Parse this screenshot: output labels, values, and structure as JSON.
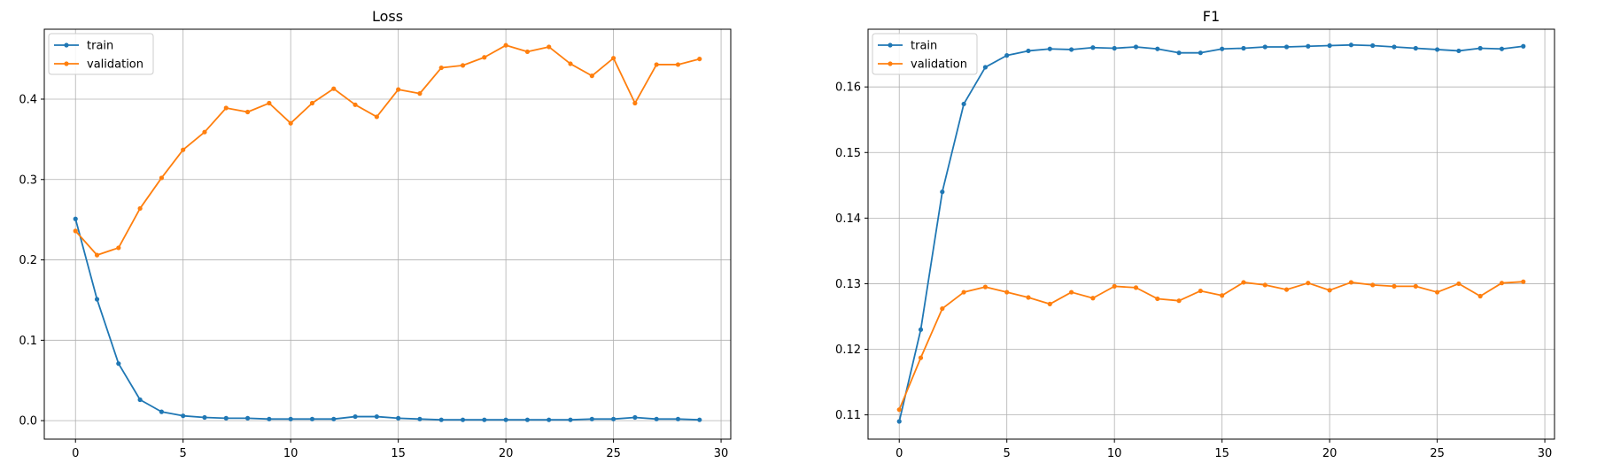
{
  "chart_data": [
    {
      "type": "line",
      "title": "Loss",
      "xlabel": "",
      "ylabel": "",
      "x": [
        0,
        1,
        2,
        3,
        4,
        5,
        6,
        7,
        8,
        9,
        10,
        11,
        12,
        13,
        14,
        15,
        16,
        17,
        18,
        19,
        20,
        21,
        22,
        23,
        24,
        25,
        26,
        27,
        28,
        29
      ],
      "xlim": [
        -1.45,
        30.45
      ],
      "ylim": [
        -0.023,
        0.487
      ],
      "xticks": [
        0,
        5,
        10,
        15,
        20,
        25,
        30
      ],
      "yticks": [
        0.0,
        0.1,
        0.2,
        0.3,
        0.4
      ],
      "xtick_labels": [
        "0",
        "5",
        "10",
        "15",
        "20",
        "25",
        "30"
      ],
      "ytick_labels": [
        "0.0",
        "0.1",
        "0.2",
        "0.3",
        "0.4"
      ],
      "grid": true,
      "legend": "top-left",
      "series": [
        {
          "name": "train",
          "color": "#1f77b4",
          "values": [
            0.251,
            0.151,
            0.071,
            0.026,
            0.011,
            0.006,
            0.004,
            0.003,
            0.003,
            0.002,
            0.002,
            0.002,
            0.002,
            0.005,
            0.005,
            0.003,
            0.002,
            0.001,
            0.001,
            0.001,
            0.001,
            0.001,
            0.001,
            0.001,
            0.002,
            0.002,
            0.004,
            0.002,
            0.002,
            0.001
          ]
        },
        {
          "name": "validation",
          "color": "#ff7f0e",
          "values": [
            0.236,
            0.206,
            0.215,
            0.264,
            0.302,
            0.337,
            0.359,
            0.389,
            0.384,
            0.395,
            0.37,
            0.395,
            0.413,
            0.393,
            0.378,
            0.412,
            0.407,
            0.439,
            0.442,
            0.452,
            0.467,
            0.459,
            0.465,
            0.444,
            0.429,
            0.451,
            0.395,
            0.443,
            0.443,
            0.45
          ]
        }
      ]
    },
    {
      "type": "line",
      "title": "F1",
      "xlabel": "",
      "ylabel": "",
      "x": [
        0,
        1,
        2,
        3,
        4,
        5,
        6,
        7,
        8,
        9,
        10,
        11,
        12,
        13,
        14,
        15,
        16,
        17,
        18,
        19,
        20,
        21,
        22,
        23,
        24,
        25,
        26,
        27,
        28,
        29
      ],
      "xlim": [
        -1.45,
        30.45
      ],
      "ylim": [
        0.1063,
        0.1688
      ],
      "xticks": [
        0,
        5,
        10,
        15,
        20,
        25,
        30
      ],
      "yticks": [
        0.11,
        0.12,
        0.13,
        0.14,
        0.15,
        0.16
      ],
      "xtick_labels": [
        "0",
        "5",
        "10",
        "15",
        "20",
        "25",
        "30"
      ],
      "ytick_labels": [
        "0.11",
        "0.12",
        "0.13",
        "0.14",
        "0.15",
        "0.16"
      ],
      "grid": true,
      "legend": "top-left",
      "series": [
        {
          "name": "train",
          "color": "#1f77b4",
          "values": [
            0.109,
            0.123,
            0.144,
            0.1574,
            0.163,
            0.1648,
            0.1655,
            0.1658,
            0.1657,
            0.166,
            0.1659,
            0.1661,
            0.1658,
            0.1652,
            0.1652,
            0.1658,
            0.1659,
            0.1661,
            0.1661,
            0.1662,
            0.1663,
            0.1664,
            0.1663,
            0.1661,
            0.1659,
            0.1657,
            0.1655,
            0.1659,
            0.1658,
            0.1662
          ]
        },
        {
          "name": "validation",
          "color": "#ff7f0e",
          "values": [
            0.1108,
            0.1187,
            0.1262,
            0.1287,
            0.1295,
            0.1287,
            0.1279,
            0.1269,
            0.1287,
            0.1278,
            0.1296,
            0.1294,
            0.1277,
            0.1274,
            0.1289,
            0.1282,
            0.1302,
            0.1298,
            0.1291,
            0.1301,
            0.129,
            0.1302,
            0.1298,
            0.1296,
            0.1296,
            0.1287,
            0.13,
            0.1281,
            0.1301,
            0.1303
          ]
        }
      ]
    }
  ]
}
